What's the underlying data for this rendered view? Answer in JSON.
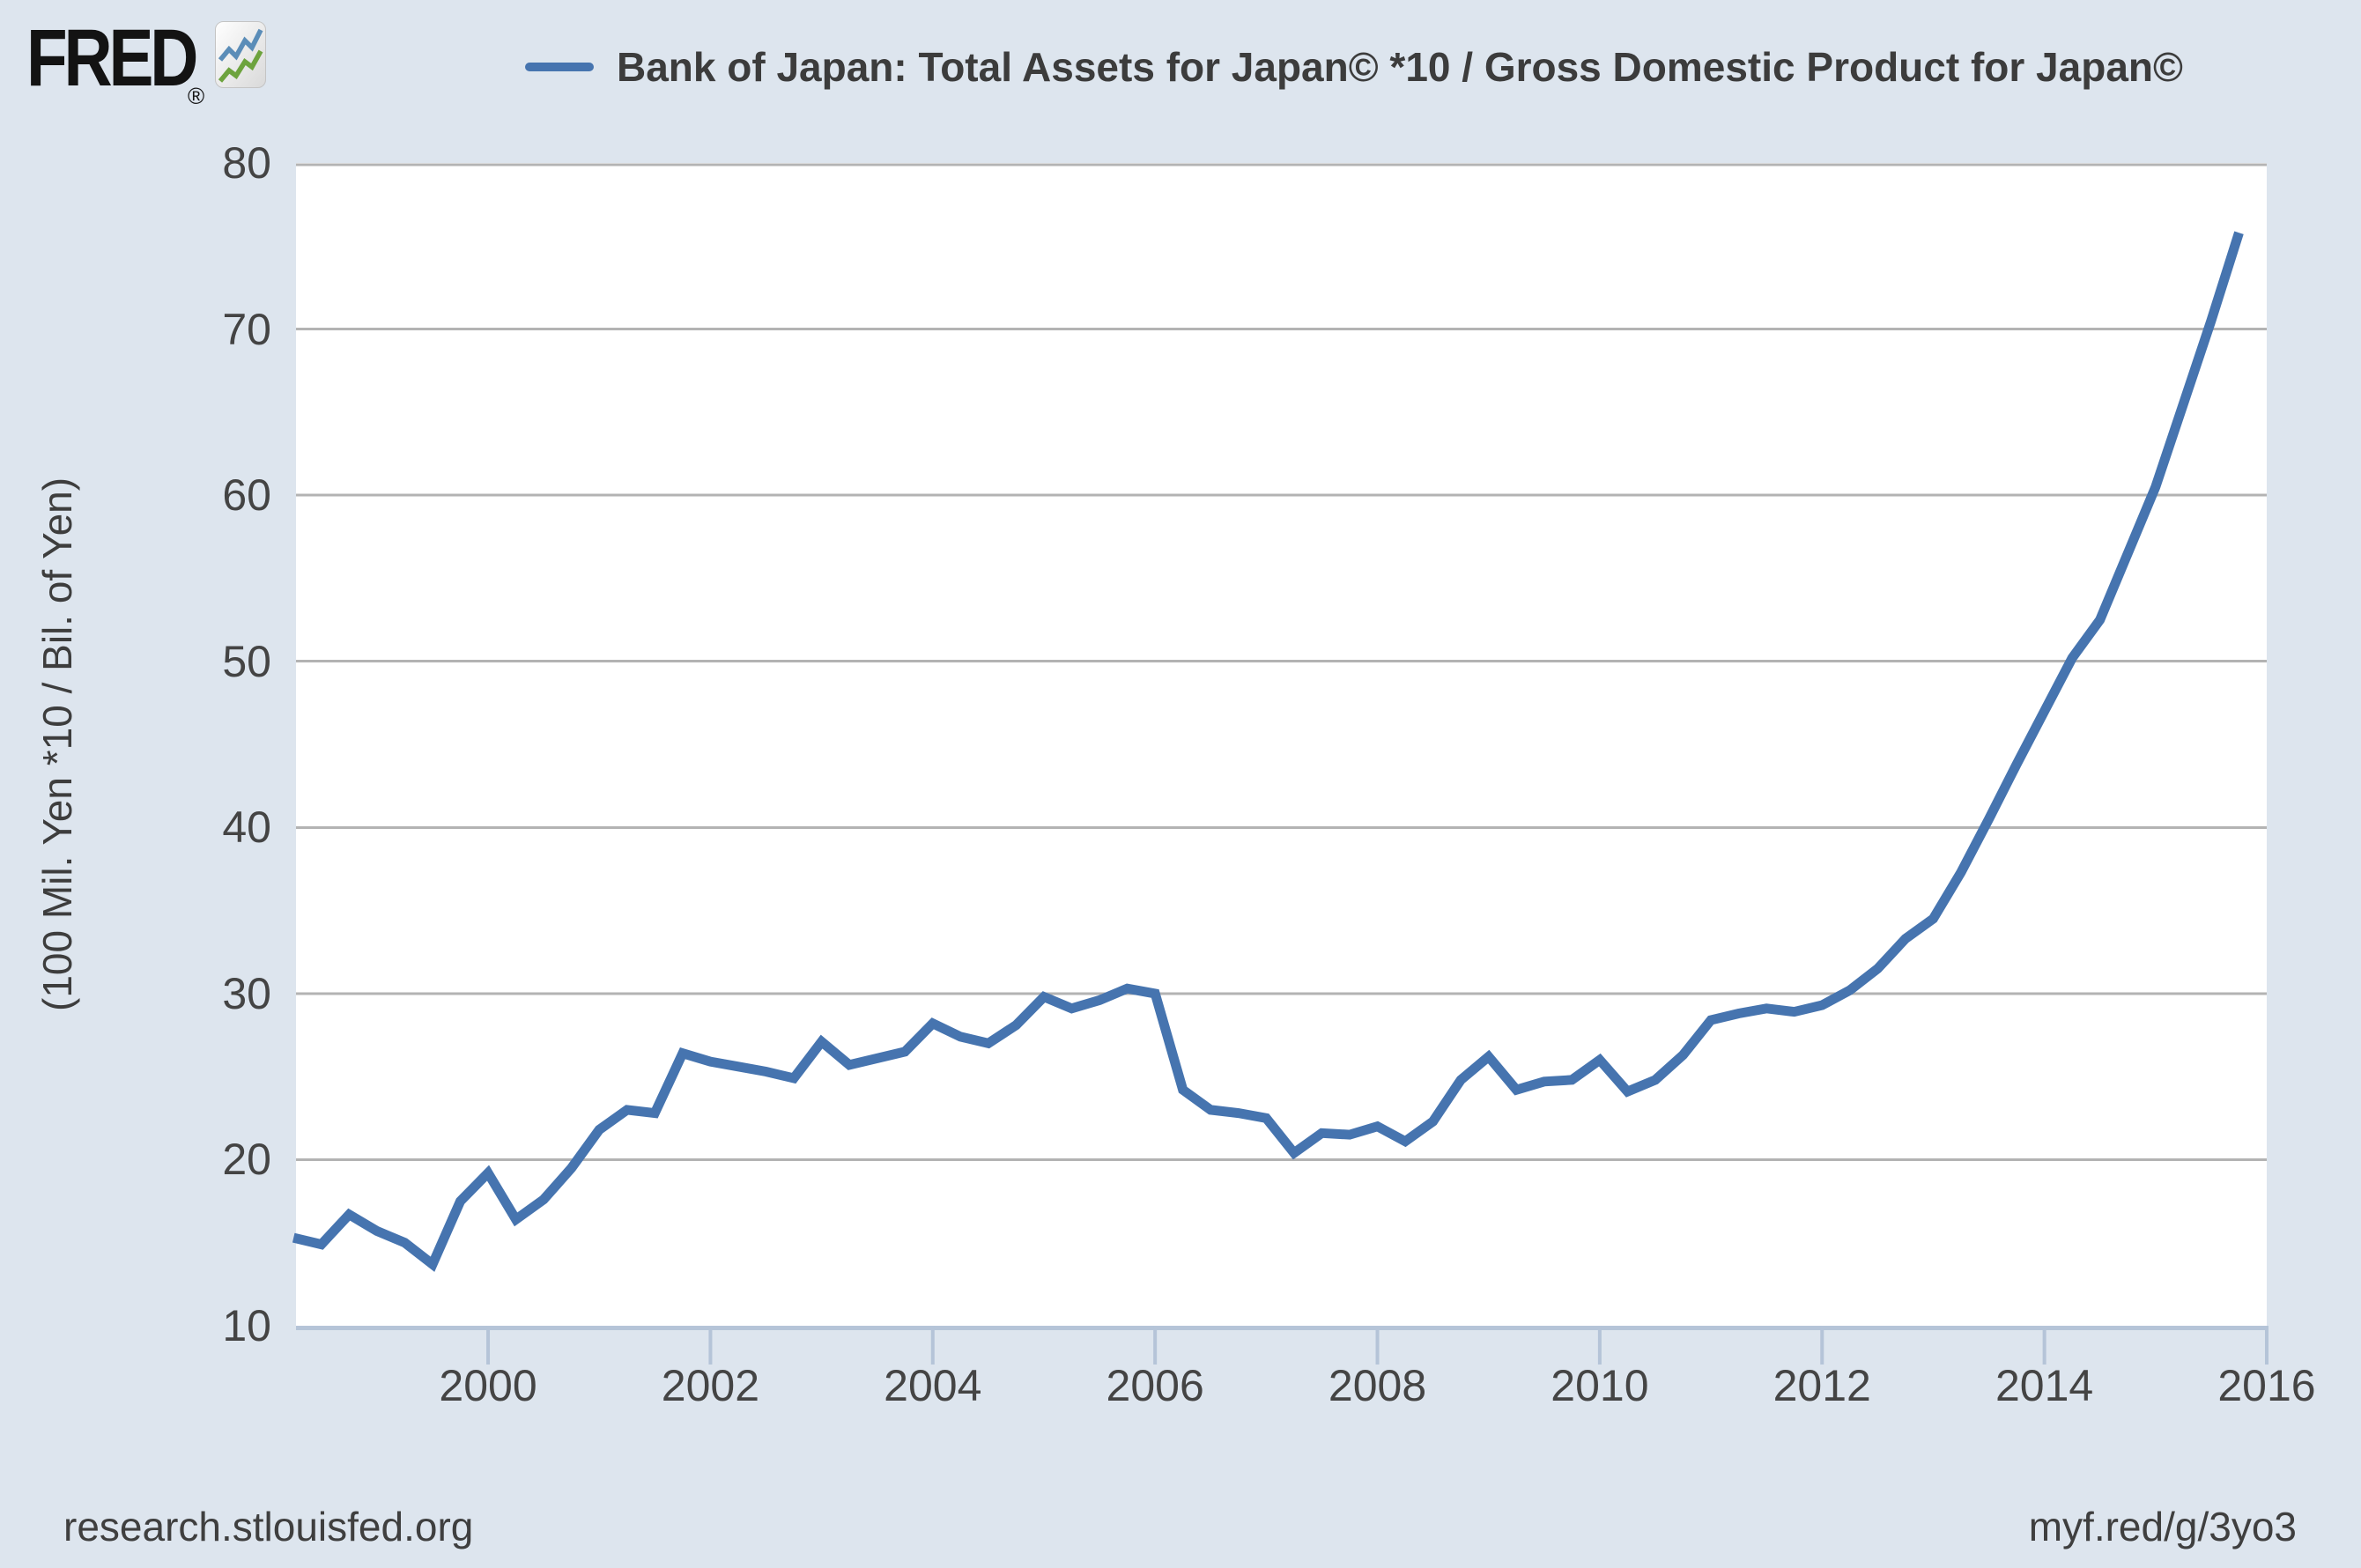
{
  "header": {
    "brand": "FRED",
    "registered": "®",
    "logo_icon": "fred-sparkline-icon",
    "logo_icon_colors": {
      "blue": "#5b8db8",
      "green": "#6da33e"
    }
  },
  "legend": {
    "swatch_color": "#4674af",
    "label": "Bank of Japan: Total Assets for Japan© *10 / Gross Domestic Product for Japan©"
  },
  "y_axis": {
    "title": "(100 Mil. Yen *10 / Bil. of Yen)",
    "ticks": [
      10,
      20,
      30,
      40,
      50,
      60,
      70,
      80
    ]
  },
  "x_axis": {
    "ticks": [
      2000,
      2002,
      2004,
      2006,
      2008,
      2010,
      2012,
      2014,
      2016
    ]
  },
  "footer": {
    "left": "research.stlouisfed.org",
    "right": "myf.red/g/3yo3"
  },
  "colors": {
    "page_background": "#dde5ee",
    "plot_background": "#ffffff",
    "grid": "#b3b3b3",
    "axis": "#b5c4d8",
    "line": "#4674af",
    "label_text": "#444444",
    "title_text": "#3c3c3c"
  },
  "chart_data": {
    "type": "line",
    "title": "Bank of Japan: Total Assets for Japan© *10 / Gross Domestic Product for Japan©",
    "ylabel": "(100 Mil. Yen *10 / Bil. of Yen)",
    "frequency": "quarterly",
    "x_range": [
      1998.272,
      2016.0
    ],
    "ylim": [
      10,
      80
    ],
    "y_ticks": [
      10,
      20,
      30,
      40,
      50,
      60,
      70,
      80
    ],
    "x_ticks": [
      2000,
      2002,
      2004,
      2006,
      2008,
      2010,
      2012,
      2014,
      2016
    ],
    "grid": true,
    "legend_position": "top",
    "series": [
      {
        "name": "Bank of Japan: Total Assets for Japan© *10 / Gross Domestic Product for Japan©",
        "x": [
          1998.25,
          1998.5,
          1998.75,
          1999.0,
          1999.25,
          1999.5,
          1999.75,
          2000.0,
          2000.25,
          2000.5,
          2000.75,
          2001.0,
          2001.25,
          2001.5,
          2001.75,
          2002.0,
          2002.25,
          2002.5,
          2002.75,
          2003.0,
          2003.25,
          2003.5,
          2003.75,
          2004.0,
          2004.25,
          2004.5,
          2004.75,
          2005.0,
          2005.25,
          2005.5,
          2005.75,
          2006.0,
          2006.25,
          2006.5,
          2006.75,
          2007.0,
          2007.25,
          2007.5,
          2007.75,
          2008.0,
          2008.25,
          2008.5,
          2008.75,
          2009.0,
          2009.25,
          2009.5,
          2009.75,
          2010.0,
          2010.25,
          2010.5,
          2010.75,
          2011.0,
          2011.25,
          2011.5,
          2011.75,
          2012.0,
          2012.25,
          2012.5,
          2012.75,
          2013.0,
          2013.25,
          2013.5,
          2013.75,
          2014.0,
          2014.25,
          2014.5,
          2014.75,
          2015.0,
          2015.25,
          2015.5,
          2015.75
        ],
        "values": [
          15.3,
          14.9,
          16.7,
          15.7,
          15.0,
          13.7,
          17.5,
          19.2,
          16.4,
          17.6,
          19.5,
          21.8,
          23.0,
          22.8,
          26.4,
          25.9,
          25.6,
          25.3,
          24.9,
          27.1,
          25.7,
          26.1,
          26.5,
          28.2,
          27.4,
          27.0,
          28.1,
          29.8,
          29.1,
          29.6,
          30.3,
          30.0,
          24.2,
          23.0,
          22.8,
          22.5,
          20.4,
          21.6,
          21.5,
          22.0,
          21.1,
          22.3,
          24.8,
          26.2,
          24.2,
          24.7,
          24.8,
          26.0,
          24.1,
          24.8,
          26.3,
          28.4,
          28.8,
          29.1,
          28.9,
          29.3,
          30.2,
          31.5,
          33.3,
          34.5,
          37.3,
          40.5,
          43.8,
          47.0,
          50.2,
          52.5,
          56.5,
          60.5,
          65.5,
          70.5,
          75.8
        ]
      }
    ],
    "line_width": 11
  }
}
